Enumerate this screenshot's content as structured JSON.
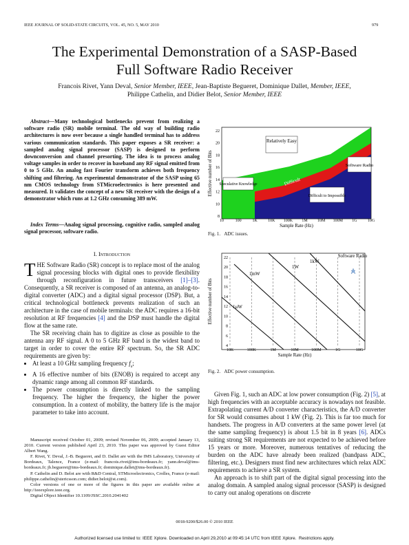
{
  "header": {
    "journal": "IEEE JOURNAL OF SOLID-STATE CIRCUITS, VOL. 45, NO. 5, MAY 2010",
    "page": "979"
  },
  "title_lines": [
    "The Experimental Demonstration of a SASP-Based",
    "Full Software Radio Receiver"
  ],
  "authors": {
    "line1": [
      "Francois Rivet, Yann Deval, ",
      "Senior Member, IEEE",
      ", Jean-Baptiste Begueret, Dominique Dallet, ",
      "Member, IEEE",
      ","
    ],
    "line2": [
      "Philippe Cathelin, and Didier Belot, ",
      "Senior Member, IEEE"
    ]
  },
  "abstract": {
    "label": "Abstract—",
    "text": "Many technological bottlenecks prevent from realizing a software radio (SR) mobile terminal. The old way of building radio architectures is now over because a single handled terminal has to address various communication standards. This paper exposes a SR receiver: a sampled analog signal processor (SASP) is designed to perform downconversion and channel presorting. The idea is to process analog voltage samples in order to recover in baseband any RF signal emitted from 0 to 5 GHz. An analog fast Fourier transform achieves both frequency shifting and filtering. An experimental demonstrator of the SASP using 65 nm CMOS technology from STMicroelectronics is here presented and measured. It validates the concept of a new SR receiver with the design of a demonstrator which runs at 1.2 GHz consuming 389 mW."
  },
  "index_terms": {
    "label": "Index Terms—",
    "text": "Analog signal processing, cognitive radio, sampled analog signal processor, software radio."
  },
  "section": "I. Introduction",
  "intro": {
    "drop_cap": "T",
    "p1": [
      "HE Software Radio (SR) concept is to replace most of the analog signal processing blocks with digital ones to provide flexibility through reconfiguration in future transceivers ",
      "[1]–[3]",
      ". Consequently, a SR receiver is composed of an antenna, an analog-to-digital converter (ADC) and a digital signal processor (DSP). But, a critical technological bottleneck prevents realization of such an architecture in the case of mobile terminals: the ADC requires a 16-bit resolution at RF frequencies ",
      "[4]",
      " and the DSP must handle the digital flow at the same rate."
    ],
    "p2": "The SR receiving chain has to digitize as close as possible to the antenna any RF signal. A 0 to 5 GHz RF band is the widest band to target in order to cover the entire RF spectrum. So, the SR ADC requirements are given by:",
    "bullets": [
      [
        "At least a 10 GHz sampling frequency ",
        "f",
        "s",
        ";"
      ],
      [
        "A 16 effective number of bits (ENOB) is required to accept any dynamic range among all common RF standards."
      ],
      [
        "The power consumption is directly linked to the sampling frequency. The higher the frequency, the higher the power consumption. In a context of mobility, the battery life is the major parameter to take into account."
      ]
    ]
  },
  "footnotes": [
    "Manuscript received October 01, 2009; revised November 06, 2009; accepted January 13, 2010. Current version published April 23, 2010. This paper was approved by Guest Editor Albert Wang.",
    "F. Rivet, Y. Deval, J.-B. Begueret, and D. Dallet are with the IMS Laboratory, University of Bordeaux, Talence, France (e-mail: francois.rivet@ims-bordeaux.fr; yann.deval@ims-bordeaux.fr; jb.begueret@ims-bordeaux.fr; dominique.dallet@ims-bordeaux.fr).",
    "P. Cathelin and D. Belot are with R&D Central, STMicroelectronics, Crolles, France (e-mail: philippe.cathelin@stericsson.com; didier.belot@st.com).",
    "Color versions of one or more of the figures in this paper are available online at http://ieeexplore.ieee.org.",
    "Digital Object Identifier 10.1109/JSSC.2010.2041402"
  ],
  "figure1": {
    "y_label": "Effective number of Bits",
    "x_label": "Sample Rate (Hz)",
    "yticks": [
      "22",
      "20",
      "18",
      "16",
      "14",
      "12",
      "10",
      "8"
    ],
    "xticks": [
      "10",
      "100",
      "1K",
      "10K",
      "100K",
      "1M",
      "10M",
      "100M",
      "1G",
      "10G"
    ],
    "regions": {
      "easy": "Relatively Easy",
      "software_radio": "Software Radio",
      "speculative": "Speculative Knowledge",
      "difficult": "Difficult",
      "impossible": "Difficult to Impossible"
    },
    "caption_label": "Fig. 1.",
    "caption": "ADC issues."
  },
  "figure2": {
    "y_label": "Effective number of Bits",
    "x_label": "Sample Rate (Hz)",
    "yticks": [
      "22",
      "20",
      "18",
      "16",
      "14",
      "12",
      "10",
      "8",
      "6",
      "4"
    ],
    "xticks": [
      "10K",
      "100K",
      "1M",
      "10M",
      "100M",
      "1G",
      "10G"
    ],
    "lines": [
      "1kW",
      "1W",
      "1mW",
      "1μW"
    ],
    "software_radio": "Software Radio",
    "caption_label": "Fig. 2.",
    "caption": "ADC power consumption."
  },
  "right_text": {
    "p1": [
      "Given Fig. 1, such an ADC at low power consumption (Fig. 2) ",
      "[5]",
      ", at high frequencies with an acceptable accuracy is nowadays not feasible. Extrapolating current A/D converter characteristics, the A/D converter for SR would consumes about 1 kW (Fig. 2). This is far too much for handsets. The progress in A/D converters at the same power level (at the same sampling frequency) is about 1.5 bit in 8 years ",
      "[6]",
      ". ADCs suiting strong SR requirements are not expected to be achieved before 15 years or more. Moreover, numerous tentatives of reducing the burden on the ADC have already been realized (bandpass ADC, filtering, etc.). Designers must find new architectures which relax ADC requirements to achieve a SR system."
    ],
    "p2": "An approach is to shift part of the digital signal processing into the analog domain. A sampled analog signal processor (SASP) is designed to carry out analog operations on discrete"
  },
  "footer": {
    "copyright": "0018-9200/$26.00 © 2010 IEEE",
    "license": "Authorized licensed use limited to: IEEE Xplore. Downloaded on April 29,2010 at 09:45:14 UTC from IEEE Xplore.  Restrictions apply."
  }
}
